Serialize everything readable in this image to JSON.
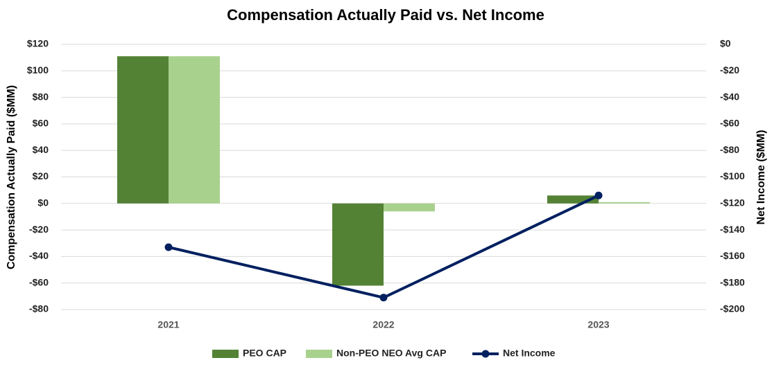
{
  "chart_data": {
    "type": "bar",
    "title": "Compensation Actually Paid vs. Net Income",
    "ylabel": "Compensation Actually Paid ($MM)",
    "y2label": "Net Income ($MM)",
    "categories": [
      "2021",
      "2022",
      "2023"
    ],
    "series": [
      {
        "name": "PEO CAP",
        "type": "bar",
        "color": "#548235",
        "values": [
          111,
          -62,
          6
        ]
      },
      {
        "name": "Non-PEO NEO Avg CAP",
        "type": "bar",
        "color": "#a9d18e",
        "values": [
          111,
          -6,
          1
        ]
      },
      {
        "name": "Net Income",
        "type": "line",
        "axis": "y2",
        "color": "#002060",
        "values": [
          -153,
          -191,
          -114
        ]
      }
    ],
    "ylim": [
      -80,
      120
    ],
    "yticks": [
      {
        "value": -80,
        "label": "-$80"
      },
      {
        "value": -60,
        "label": "-$60"
      },
      {
        "value": -40,
        "label": "-$40"
      },
      {
        "value": -20,
        "label": "-$20"
      },
      {
        "value": 0,
        "label": "$0"
      },
      {
        "value": 20,
        "label": "$20"
      },
      {
        "value": 40,
        "label": "$40"
      },
      {
        "value": 60,
        "label": "$60"
      },
      {
        "value": 80,
        "label": "$80"
      },
      {
        "value": 100,
        "label": "$100"
      },
      {
        "value": 120,
        "label": "$120"
      }
    ],
    "y2lim": [
      -200,
      0
    ],
    "y2ticks": [
      {
        "value": -200,
        "label": "-$200"
      },
      {
        "value": -180,
        "label": "-$180"
      },
      {
        "value": -160,
        "label": "-$160"
      },
      {
        "value": -140,
        "label": "-$140"
      },
      {
        "value": -120,
        "label": "-$120"
      },
      {
        "value": -100,
        "label": "-$100"
      },
      {
        "value": -80,
        "label": "-$80"
      },
      {
        "value": -60,
        "label": "-$60"
      },
      {
        "value": -40,
        "label": "-$40"
      },
      {
        "value": -20,
        "label": "-$20"
      },
      {
        "value": 0,
        "label": "$0"
      }
    ],
    "grid": true,
    "legend": "bottom"
  }
}
